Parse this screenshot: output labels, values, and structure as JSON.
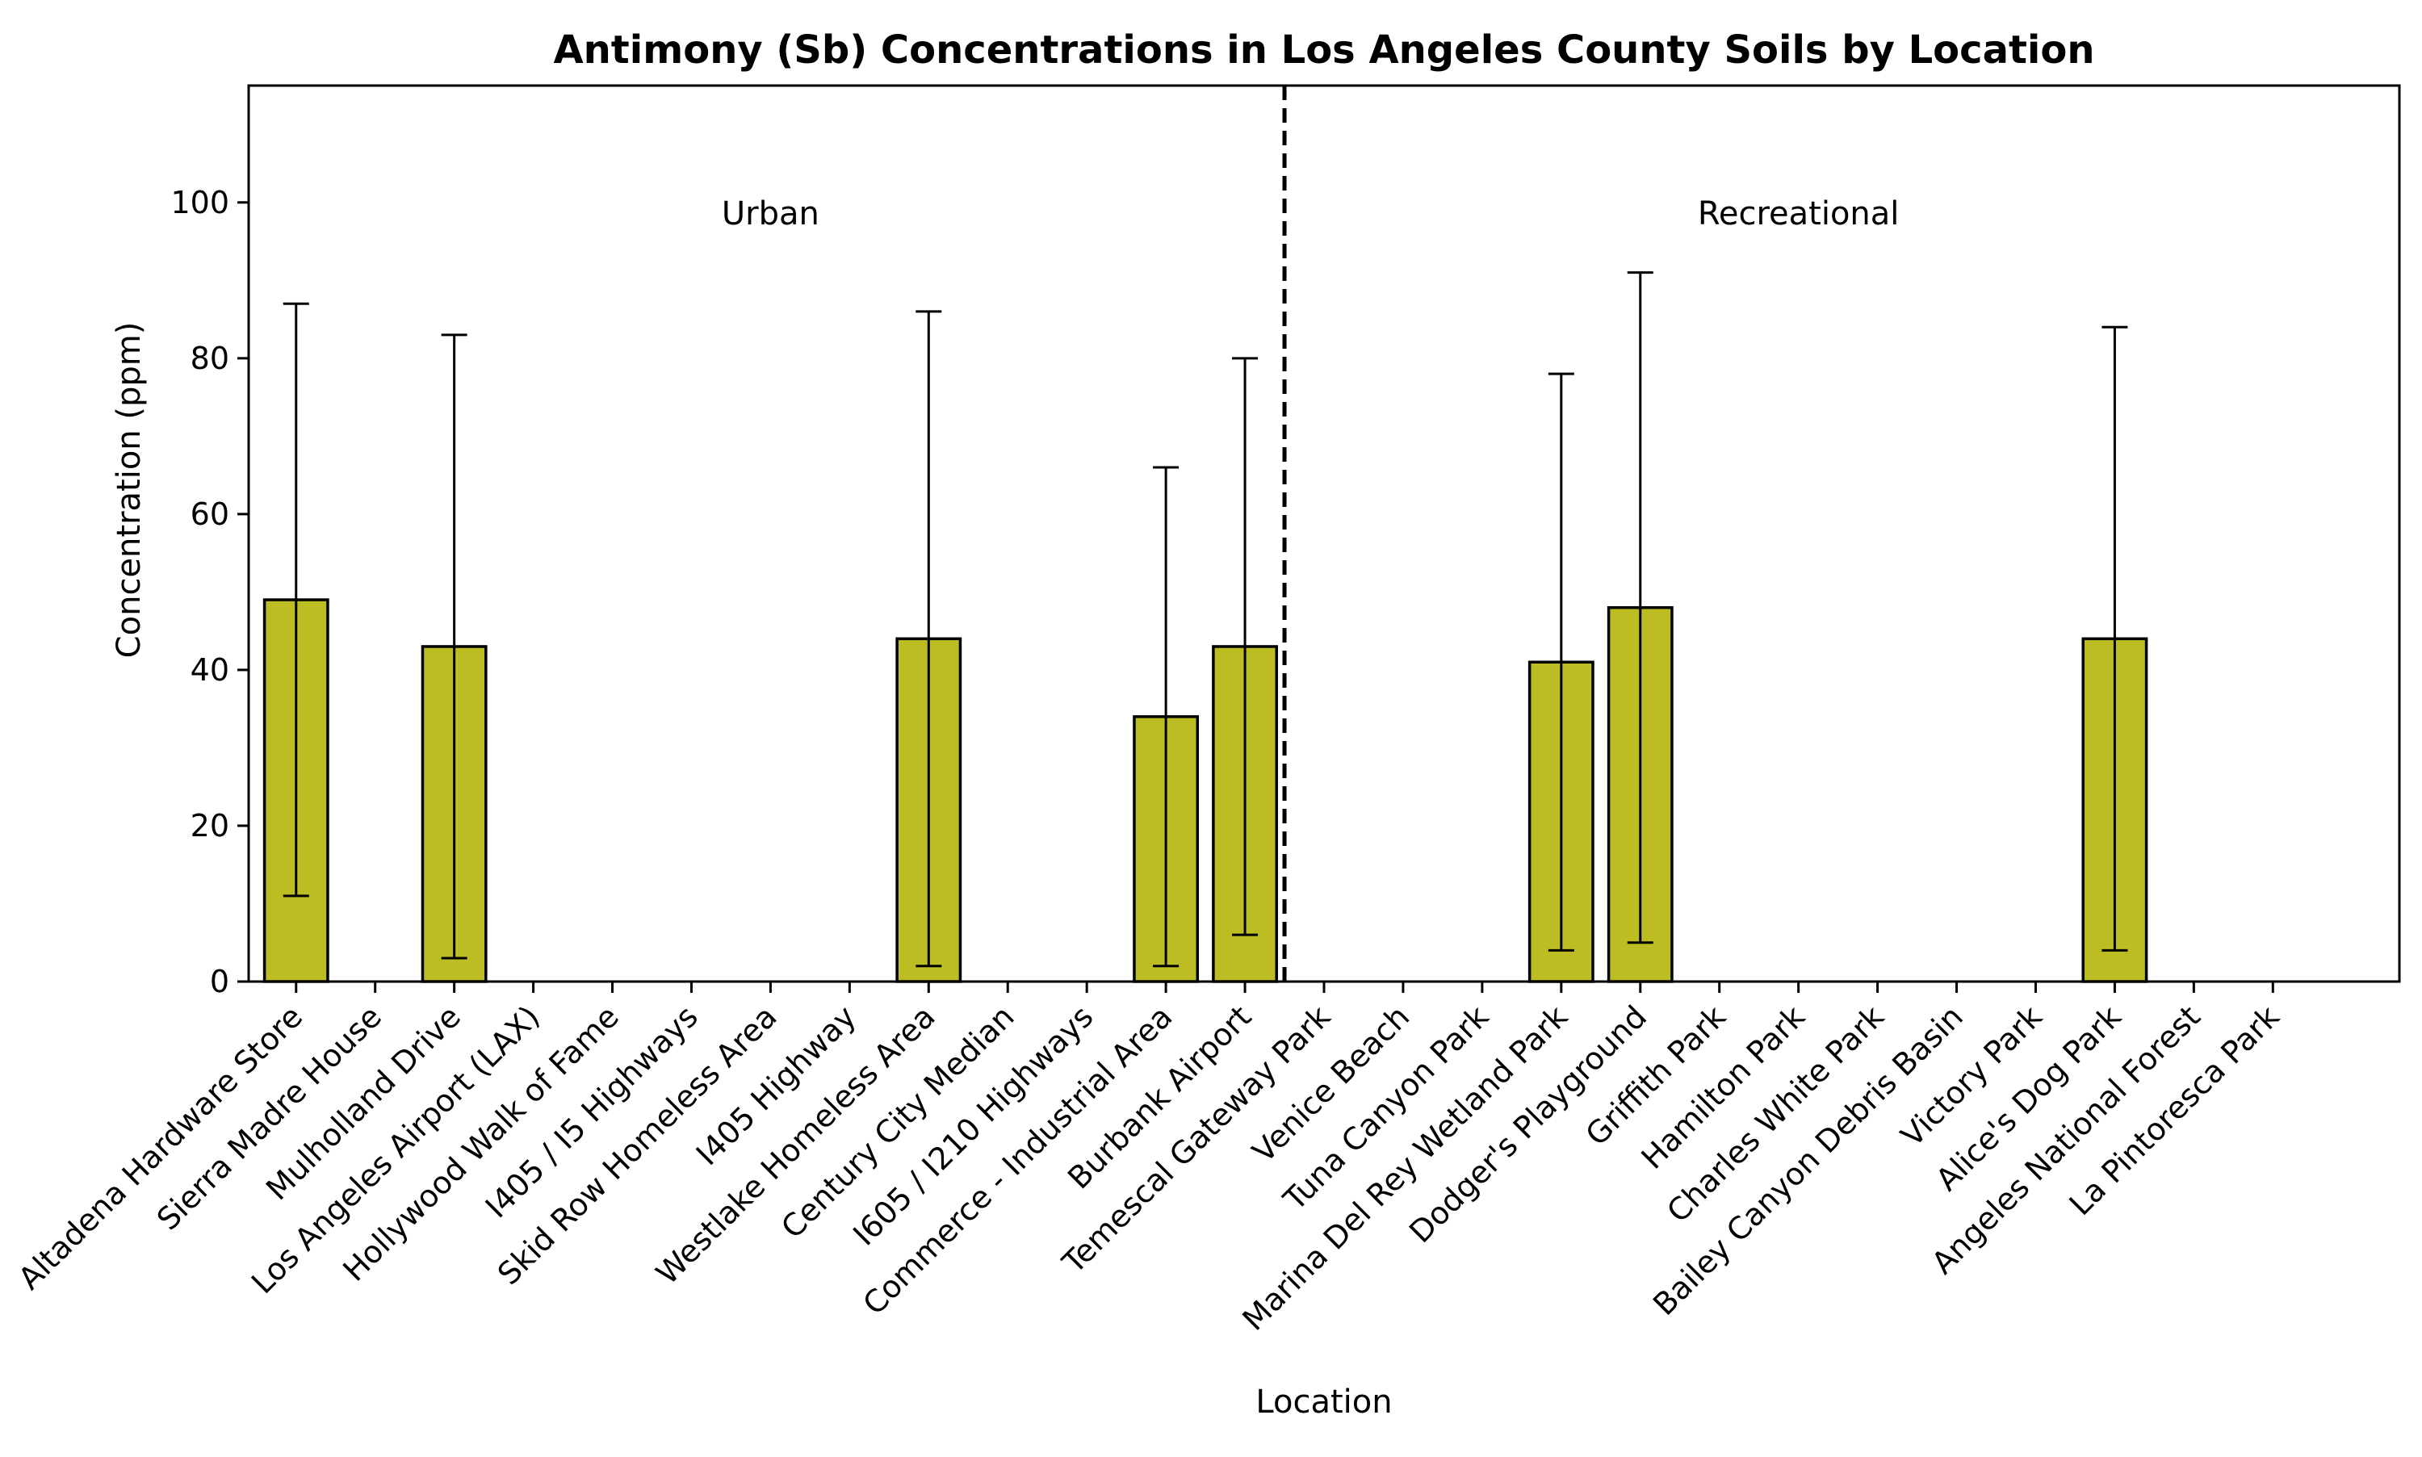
{
  "chart_data": {
    "type": "bar",
    "title": "Antimony (Sb) Concentrations in Los Angeles County Soils by Location",
    "xlabel": "Location",
    "ylabel": "Concentration (ppm)",
    "ylim": [
      0,
      115
    ],
    "yticks": [
      0,
      20,
      40,
      60,
      80,
      100
    ],
    "grid": false,
    "legend": "none",
    "categories": [
      "Altadena Hardware Store",
      "Sierra Madre House",
      "Mulholland Drive",
      "Los Angeles Airport (LAX)",
      "Hollywood Walk of Fame",
      "I405 / I5 Highways",
      "Skid Row Homeless Area",
      "I405 Highway",
      "Westlake Homeless Area",
      "Century City Median",
      "I605 / I210 Highways",
      "Commerce - Industrial Area",
      "Burbank Airport",
      "Temescal Gateway Park",
      "Venice Beach",
      "Tuna Canyon Park",
      "Marina Del Rey Wetland Park",
      "Dodger's Playground",
      "Griffith Park",
      "Hamilton Park",
      "Charles White Park",
      "Bailey Canyon Debris Basin",
      "Victory Park",
      "Alice's Dog Park",
      "Angeles National Forest",
      "La Pintoresca Park"
    ],
    "values": [
      49,
      0,
      43,
      0,
      0,
      0,
      0,
      0,
      44,
      0,
      0,
      34,
      43,
      0,
      0,
      0,
      41,
      48,
      0,
      0,
      0,
      0,
      0,
      44,
      0,
      0
    ],
    "error_low": [
      11,
      null,
      3,
      null,
      null,
      null,
      null,
      null,
      2,
      null,
      null,
      2,
      6,
      null,
      null,
      null,
      4,
      5,
      null,
      null,
      null,
      null,
      null,
      4,
      null,
      null
    ],
    "error_high": [
      87,
      null,
      83,
      null,
      null,
      null,
      null,
      null,
      86,
      null,
      null,
      66,
      80,
      null,
      null,
      null,
      78,
      91,
      null,
      null,
      null,
      null,
      null,
      84,
      null,
      null
    ],
    "groups": [
      {
        "name": "Urban",
        "start": 0,
        "end": 12
      },
      {
        "name": "Recreational",
        "start": 13,
        "end": 25
      }
    ],
    "bar_color": "#bcbd22",
    "divider_style": "dashed"
  }
}
